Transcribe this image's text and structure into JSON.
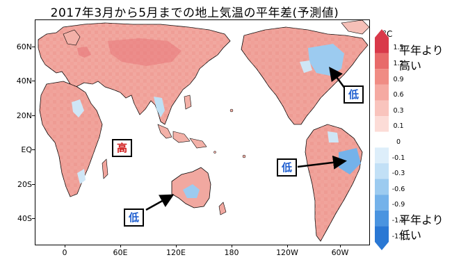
{
  "title": "2017年3月から5月までの地上気温の平年差(予測値)",
  "lat_labels": [
    "60N",
    "40N",
    "20N",
    "EQ",
    "20S",
    "40S"
  ],
  "lon_labels": [
    "0",
    "60E",
    "120E",
    "180",
    "120W",
    "60W"
  ],
  "callouts": {
    "high_indian_ocean": "高",
    "low_north_america": "低",
    "low_south_america": "低",
    "low_australia": "低"
  },
  "colorbar": {
    "unit": "°C",
    "levels": [
      "1.5",
      "1.2",
      "0.9",
      "0.6",
      "0.3",
      "0.1",
      "0",
      "-0.1",
      "-0.3",
      "-0.6",
      "-0.9",
      "-1.2",
      "-1.5"
    ],
    "colors": [
      "#d9394a",
      "#e86a6a",
      "#f08c84",
      "#f5aaa2",
      "#f9c4bd",
      "#fcdcd7",
      "#ffffff",
      "#ddeefa",
      "#c2e0f6",
      "#9ccbf0",
      "#74b2ea",
      "#4a94e0",
      "#2a78d4"
    ],
    "upper_label_line1": "平年より",
    "upper_label_line2": "高い",
    "lower_label_line1": "平年より",
    "lower_label_line2": "低い"
  }
}
